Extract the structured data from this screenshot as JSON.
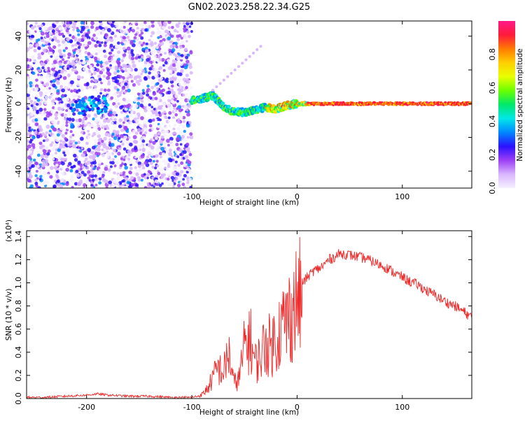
{
  "title": "GN02.2023.258.22.34.G25",
  "colors": {
    "snr_line": "#ee2a2a",
    "axes": "#000000"
  },
  "chart_data": [
    {
      "type": "heatmap",
      "xlabel": "Height of straight line (km)",
      "ylabel": "Frequency (Hz)",
      "xlim": [
        -257,
        166
      ],
      "ylim": [
        -50,
        49
      ],
      "xticks": [
        -200,
        -100,
        0,
        100
      ],
      "yticks": [
        -40,
        -20,
        0,
        20,
        40
      ],
      "noise_region_x": [
        -257,
        -100
      ],
      "signal_track": [
        {
          "x": -100,
          "y": 2
        },
        {
          "x": -90,
          "y": 3
        },
        {
          "x": -80,
          "y": 5
        },
        {
          "x": -70,
          "y": -2
        },
        {
          "x": -60,
          "y": -5
        },
        {
          "x": -50,
          "y": -5
        },
        {
          "x": -40,
          "y": -4
        },
        {
          "x": -30,
          "y": -2
        },
        {
          "x": -20,
          "y": -3
        },
        {
          "x": -10,
          "y": -1
        },
        {
          "x": 0,
          "y": 0
        },
        {
          "x": 20,
          "y": 0
        },
        {
          "x": 166,
          "y": 0
        }
      ],
      "colorbar": {
        "label": "Normalized spectral amplitude",
        "range": [
          0.0,
          1.0
        ],
        "ticks": [
          "0.0",
          "0.2",
          "0.4",
          "0.6",
          "0.8"
        ],
        "colormap": [
          "#f5f0ff",
          "#d9b5ff",
          "#9c3ff5",
          "#2a11ff",
          "#0088ff",
          "#00e8e8",
          "#00e86a",
          "#6aff00",
          "#e8ff00",
          "#ffd000",
          "#ff7a00",
          "#ff1a3a",
          "#ff1a8a"
        ]
      }
    },
    {
      "type": "line",
      "xlabel": "Height of straight line (km)",
      "ylabel": "SNR (10 * v/v)",
      "y_multiplier": "(x10⁴)",
      "xlim": [
        -257,
        166
      ],
      "ylim": [
        0.0,
        1.45
      ],
      "xticks": [
        -200,
        -100,
        0,
        100
      ],
      "yticks": [
        "0.0",
        "0.2",
        "0.4",
        "0.6",
        "0.8",
        "1.0",
        "1.2",
        "1.4"
      ],
      "series": [
        {
          "x": [
            -257,
            -240,
            -220,
            -200,
            -190,
            -180,
            -160,
            -140,
            -120,
            -100,
            -95,
            -90,
            -85,
            -80,
            -75,
            -70,
            -65,
            -60,
            -55,
            -50,
            -45,
            -40,
            -35,
            -30,
            -25,
            -20,
            -15,
            -10,
            -5,
            0,
            5,
            10,
            15,
            20,
            25,
            30,
            35,
            40,
            45,
            50,
            55,
            60,
            65,
            70,
            75,
            80,
            85,
            90,
            95,
            100,
            105,
            110,
            115,
            120,
            125,
            130,
            135,
            140,
            145,
            150,
            155,
            160,
            166
          ],
          "y": [
            0.01,
            0.01,
            0.02,
            0.03,
            0.04,
            0.03,
            0.02,
            0.02,
            0.01,
            0.01,
            0.02,
            0.04,
            0.1,
            0.2,
            0.3,
            0.25,
            0.45,
            0.15,
            0.2,
            0.5,
            0.6,
            0.35,
            0.4,
            0.55,
            0.5,
            0.6,
            0.7,
            0.75,
            0.85,
            0.95,
            1.0,
            1.05,
            1.1,
            1.12,
            1.15,
            1.2,
            1.22,
            1.25,
            1.25,
            1.24,
            1.23,
            1.22,
            1.21,
            1.19,
            1.17,
            1.15,
            1.13,
            1.1,
            1.07,
            1.05,
            1.02,
            1.0,
            0.98,
            0.95,
            0.92,
            0.9,
            0.87,
            0.84,
            0.82,
            0.8,
            0.77,
            0.74,
            0.7
          ]
        }
      ]
    }
  ]
}
